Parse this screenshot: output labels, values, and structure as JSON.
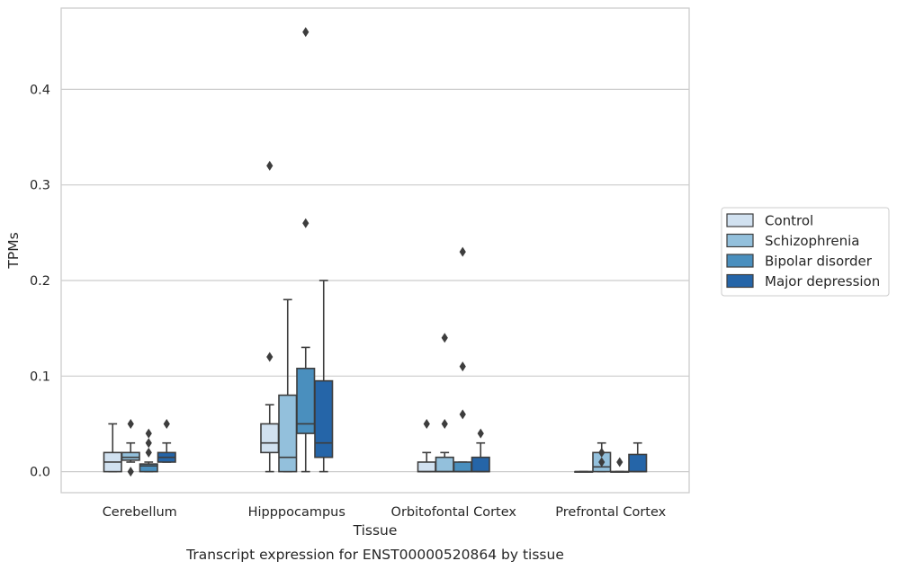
{
  "chart_data": {
    "type": "box",
    "title": "",
    "caption": "Transcript expression for ENST00000520864 by tissue",
    "xlabel": "Tissue",
    "ylabel": "TPMs",
    "categories": [
      "Cerebellum",
      "Hipppocampus",
      "Orbitofontal Cortex",
      "Prefrontal Cortex"
    ],
    "yticks": [
      "0.0",
      "0.1",
      "0.2",
      "0.3",
      "0.4"
    ],
    "ylim": [
      -0.022,
      0.485
    ],
    "grid": "horizontal",
    "legend_position": "right",
    "series": [
      {
        "name": "Control",
        "color": "#d1e1f0",
        "boxes": [
          {
            "whislo": 0.0,
            "q1": 0.0,
            "med": 0.01,
            "q3": 0.02,
            "whishi": 0.05,
            "fliers": []
          },
          {
            "whislo": 0.0,
            "q1": 0.02,
            "med": 0.03,
            "q3": 0.05,
            "whishi": 0.07,
            "fliers": [
              0.12,
              0.32
            ]
          },
          {
            "whislo": 0.0,
            "q1": 0.0,
            "med": 0.0,
            "q3": 0.01,
            "whishi": 0.02,
            "fliers": [
              0.05
            ]
          },
          {
            "whislo": 0.0,
            "q1": 0.0,
            "med": 0.0,
            "q3": 0.0,
            "whishi": 0.0,
            "fliers": []
          }
        ]
      },
      {
        "name": "Schizophrenia",
        "color": "#93c0dc",
        "boxes": [
          {
            "whislo": 0.01,
            "q1": 0.012,
            "med": 0.015,
            "q3": 0.02,
            "whishi": 0.03,
            "fliers": [
              0.0,
              0.05
            ]
          },
          {
            "whislo": 0.0,
            "q1": 0.0,
            "med": 0.015,
            "q3": 0.08,
            "whishi": 0.18,
            "fliers": []
          },
          {
            "whislo": 0.0,
            "q1": 0.0,
            "med": 0.0,
            "q3": 0.015,
            "whishi": 0.02,
            "fliers": [
              0.05,
              0.14
            ]
          },
          {
            "whislo": 0.0,
            "q1": 0.0,
            "med": 0.005,
            "q3": 0.02,
            "whishi": 0.03,
            "fliers": [
              0.01,
              0.02
            ]
          }
        ]
      },
      {
        "name": "Bipolar disorder",
        "color": "#4a8fbe",
        "boxes": [
          {
            "whislo": 0.0,
            "q1": 0.0,
            "med": 0.006,
            "q3": 0.008,
            "whishi": 0.01,
            "fliers": [
              0.02,
              0.03,
              0.04
            ]
          },
          {
            "whislo": 0.0,
            "q1": 0.04,
            "med": 0.05,
            "q3": 0.108,
            "whishi": 0.13,
            "fliers": [
              0.26,
              0.46
            ]
          },
          {
            "whislo": 0.0,
            "q1": 0.0,
            "med": 0.0,
            "q3": 0.01,
            "whishi": 0.01,
            "fliers": [
              0.06,
              0.11,
              0.23
            ]
          },
          {
            "whislo": 0.0,
            "q1": 0.0,
            "med": 0.0,
            "q3": 0.0,
            "whishi": 0.0,
            "fliers": [
              0.01
            ]
          }
        ]
      },
      {
        "name": "Major depression",
        "color": "#2565a8",
        "boxes": [
          {
            "whislo": 0.01,
            "q1": 0.01,
            "med": 0.015,
            "q3": 0.02,
            "whishi": 0.03,
            "fliers": [
              0.05
            ]
          },
          {
            "whislo": 0.0,
            "q1": 0.015,
            "med": 0.03,
            "q3": 0.095,
            "whishi": 0.2,
            "fliers": []
          },
          {
            "whislo": 0.0,
            "q1": 0.0,
            "med": 0.0,
            "q3": 0.015,
            "whishi": 0.03,
            "fliers": [
              0.04
            ]
          },
          {
            "whislo": 0.0,
            "q1": 0.0,
            "med": 0.0,
            "q3": 0.018,
            "whishi": 0.03,
            "fliers": []
          }
        ]
      }
    ]
  }
}
